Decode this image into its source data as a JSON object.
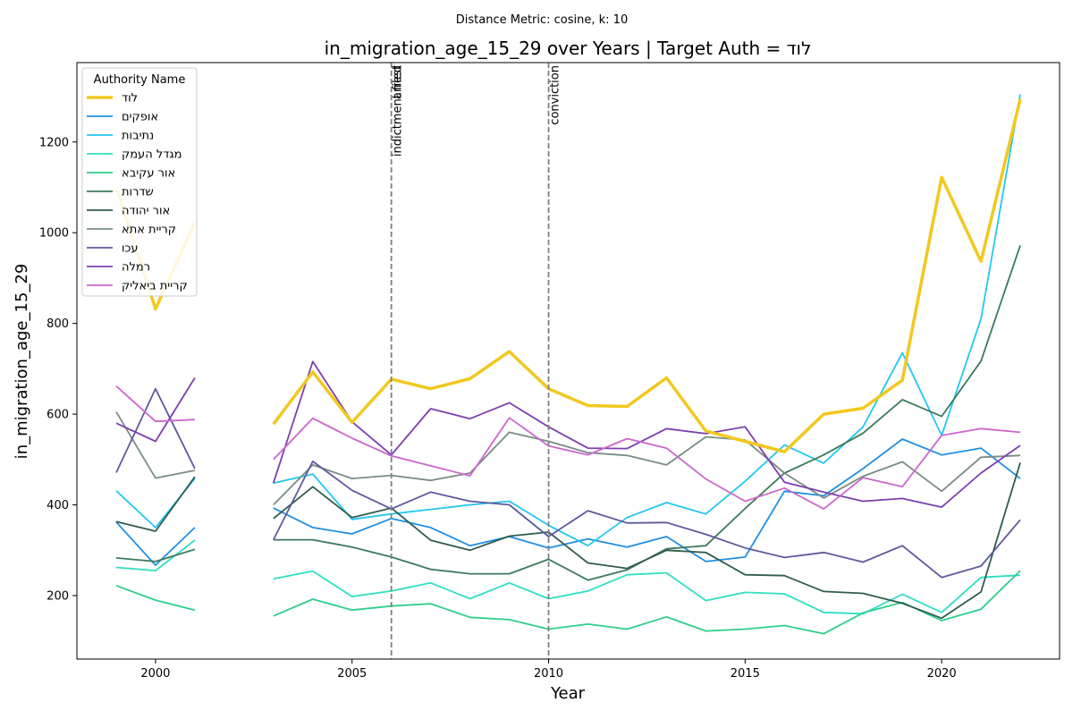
{
  "chart_data": {
    "type": "line",
    "suptitle": "Distance Metric: cosine, k: 10",
    "title": "in_migration_age_15_29 over Years | Target Auth = לוד",
    "xlabel": "Year",
    "ylabel": "in_migration_age_15_29",
    "xlim": [
      1998,
      2023
    ],
    "ylim": [
      60,
      1375
    ],
    "xticks": [
      2000,
      2005,
      2010,
      2015,
      2020
    ],
    "yticks": [
      200,
      400,
      600,
      800,
      1000,
      1200
    ],
    "grid": false,
    "legend": {
      "title": "Authority Name",
      "placement": "top-left"
    },
    "x": [
      1999,
      2000,
      2001,
      2002,
      2003,
      2004,
      2005,
      2006,
      2007,
      2008,
      2009,
      2010,
      2011,
      2012,
      2013,
      2014,
      2015,
      2016,
      2017,
      2018,
      2019,
      2020,
      2021,
      2022
    ],
    "events": [
      {
        "x": 2006,
        "labels": [
          "indictment filed",
          "arrest"
        ]
      },
      {
        "x": 2010,
        "labels": [
          "conviction"
        ]
      }
    ],
    "series": [
      {
        "name": "לוד",
        "color": "#f2c81e",
        "target": true,
        "values": [
          1100,
          832,
          1022,
          null,
          578,
          693,
          582,
          677,
          656,
          678,
          738,
          656,
          619,
          617,
          680,
          563,
          540,
          517,
          600,
          613,
          675,
          1122,
          937,
          1295
        ]
      },
      {
        "name": "אופקים",
        "color": "#1f8fe5",
        "values": [
          362,
          267,
          350,
          null,
          393,
          350,
          336,
          370,
          350,
          310,
          330,
          305,
          325,
          307,
          330,
          275,
          285,
          430,
          420,
          480,
          545,
          510,
          525,
          458
        ]
      },
      {
        "name": "נתיבות",
        "color": "#22c7f0",
        "values": [
          431,
          350,
          458,
          null,
          448,
          468,
          368,
          380,
          390,
          400,
          408,
          355,
          310,
          372,
          405,
          380,
          452,
          532,
          492,
          572,
          735,
          553,
          810,
          1305
        ]
      },
      {
        "name": "מגדל העמק",
        "color": "#2ee0c0",
        "values": [
          262,
          255,
          322,
          null,
          237,
          254,
          198,
          210,
          228,
          193,
          228,
          193,
          210,
          246,
          250,
          189,
          207,
          204,
          163,
          160,
          203,
          163,
          240,
          245
        ]
      },
      {
        "name": "אור עקיבא",
        "color": "#2ecf8a",
        "values": [
          222,
          190,
          168,
          null,
          155,
          192,
          168,
          177,
          182,
          152,
          147,
          126,
          137,
          126,
          153,
          122,
          126,
          134,
          116,
          162,
          185,
          145,
          170,
          255
        ]
      },
      {
        "name": "שדרות",
        "color": "#3b7a5c",
        "values": [
          283,
          275,
          302,
          null,
          323,
          323,
          307,
          285,
          258,
          248,
          248,
          280,
          234,
          257,
          303,
          310,
          392,
          470,
          510,
          558,
          632,
          595,
          717,
          972
        ]
      },
      {
        "name": "אור יהודה",
        "color": "#2f5c4e",
        "values": [
          363,
          342,
          462,
          null,
          370,
          440,
          372,
          393,
          322,
          300,
          331,
          340,
          272,
          260,
          300,
          295,
          246,
          244,
          209,
          205,
          183,
          150,
          208,
          493
        ]
      },
      {
        "name": "קריית אתא",
        "color": "#7a8c85",
        "values": [
          605,
          459,
          476,
          null,
          400,
          488,
          458,
          465,
          454,
          470,
          560,
          540,
          515,
          509,
          488,
          550,
          543,
          470,
          415,
          463,
          495,
          430,
          505,
          509
        ]
      },
      {
        "name": "עכו",
        "color": "#5e5a9e",
        "values": [
          471,
          656,
          480,
          null,
          323,
          496,
          432,
          391,
          428,
          408,
          400,
          330,
          387,
          360,
          361,
          335,
          305,
          284,
          295,
          274,
          310,
          240,
          265,
          367
        ]
      },
      {
        "name": "רמלה",
        "color": "#7e3fb0",
        "values": [
          580,
          540,
          680,
          null,
          448,
          716,
          583,
          510,
          612,
          590,
          625,
          572,
          525,
          524,
          568,
          557,
          572,
          450,
          428,
          408,
          414,
          395,
          470,
          531
        ]
      },
      {
        "name": "קריית ביאליק",
        "color": "#cc66cc",
        "values": [
          662,
          584,
          588,
          null,
          500,
          591,
          547,
          508,
          486,
          464,
          592,
          530,
          510,
          546,
          525,
          457,
          408,
          437,
          391,
          460,
          440,
          553,
          568,
          560
        ]
      }
    ]
  }
}
